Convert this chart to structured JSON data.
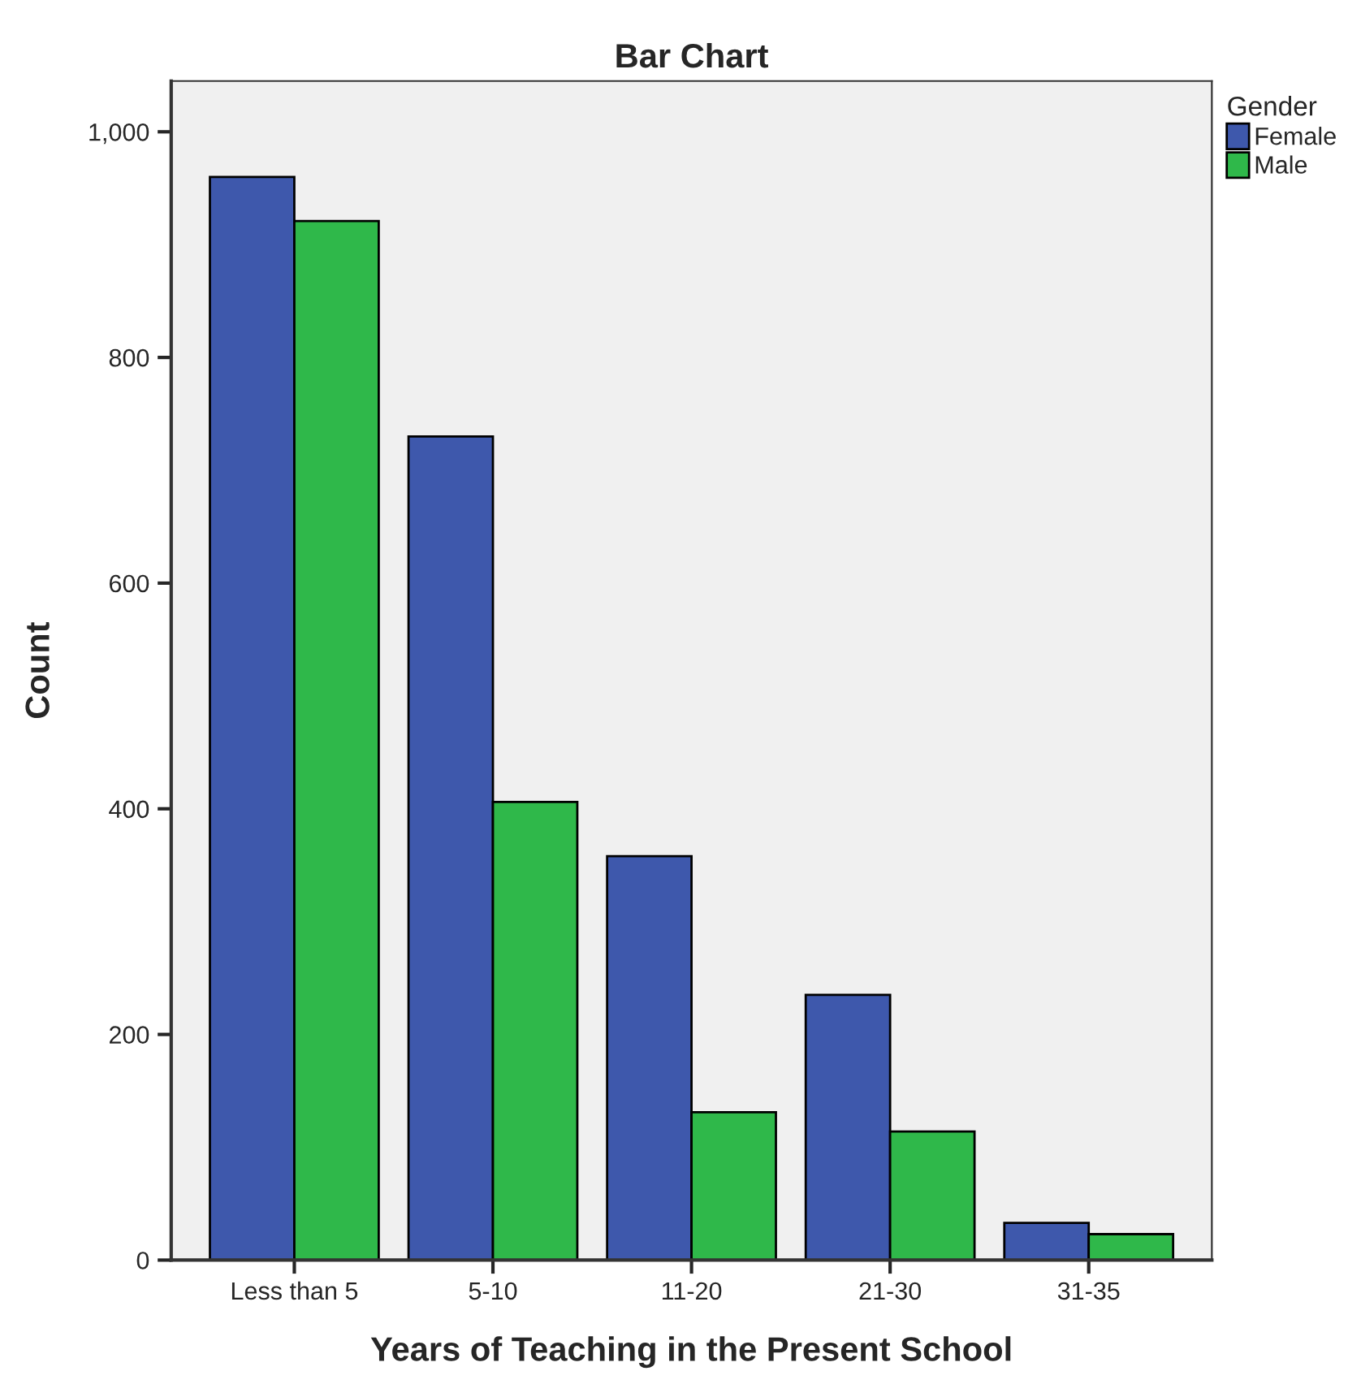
{
  "chart_data": {
    "type": "bar",
    "title": "Bar Chart",
    "xlabel": "Years of Teaching in the Present School",
    "ylabel": "Count",
    "legend_title": "Gender",
    "categories": [
      "Less than 5",
      "5-10",
      "11-20",
      "21-30",
      "31-35"
    ],
    "series": [
      {
        "name": "Female",
        "color": "#3e58ac",
        "values": [
          960,
          730,
          358,
          235,
          33
        ]
      },
      {
        "name": "Male",
        "color": "#2fb84a",
        "values": [
          921,
          406,
          131,
          114,
          23
        ]
      }
    ],
    "ylim": [
      0,
      1045
    ],
    "yticks": [
      0,
      200,
      400,
      600,
      800,
      {
        "value": 1000,
        "label": "1,000"
      }
    ],
    "grid": false,
    "legend": "top right"
  }
}
